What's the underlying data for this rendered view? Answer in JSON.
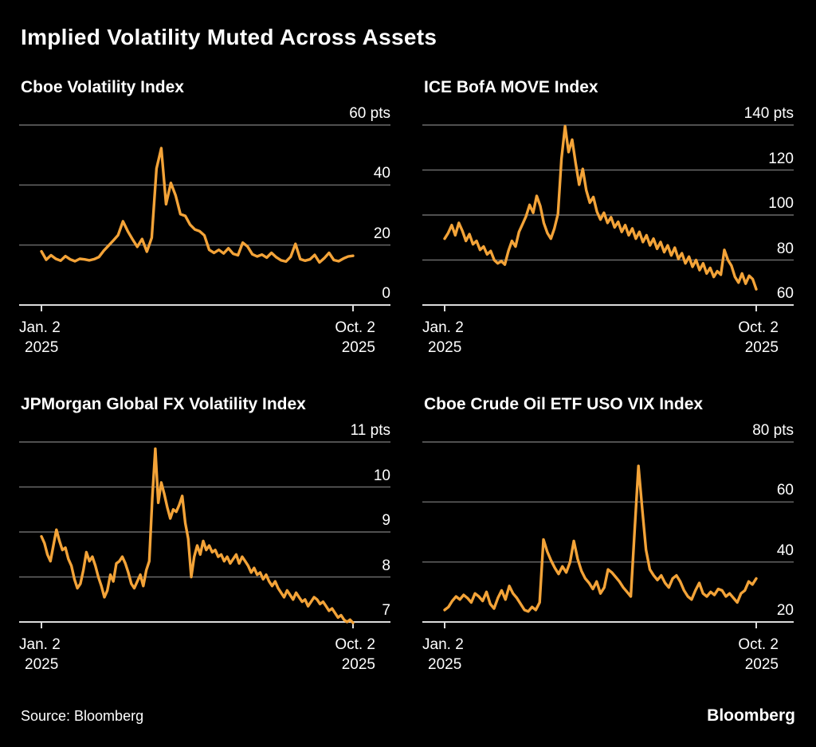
{
  "header": {
    "title": "Implied Volatility Muted Across Assets"
  },
  "footer": {
    "source_label": "Source: Bloomberg",
    "brand": "Bloomberg"
  },
  "colors": {
    "background": "#000000",
    "line": "#F3A338",
    "gridline": "#6b6b6b",
    "axis_line": "#DCDCDC",
    "text": "#FFFFFF"
  },
  "chart_data": [
    {
      "type": "line",
      "title": "Cboe Volatility Index",
      "unit": "pts",
      "ylim": [
        0,
        60
      ],
      "grid": true,
      "legend": "none",
      "yticks": [
        {
          "value": 60,
          "label": "60 pts"
        },
        {
          "value": 40,
          "label": "40"
        },
        {
          "value": 20,
          "label": "20"
        },
        {
          "value": 0,
          "label": "0"
        }
      ],
      "x_start": {
        "line1": "Jan. 2",
        "line2": "2025"
      },
      "x_end": {
        "line1": "Oct. 2",
        "line2": "2025"
      },
      "values": [
        17.9,
        15.1,
        16.6,
        15.4,
        14.8,
        16.3,
        15.2,
        14.6,
        15.4,
        15.2,
        14.9,
        15.3,
        16.0,
        18.1,
        19.8,
        21.5,
        23.3,
        27.9,
        24.6,
        21.9,
        19.4,
        22.0,
        17.8,
        22.4,
        45.5,
        52.3,
        33.6,
        40.7,
        36.5,
        30.3,
        29.7,
        26.8,
        25.2,
        24.6,
        23.2,
        18.4,
        17.4,
        18.4,
        17.2,
        18.9,
        17.1,
        16.6,
        20.8,
        19.5,
        16.9,
        16.2,
        16.8,
        15.8,
        17.4,
        15.9,
        14.9,
        14.5,
        16.1,
        20.4,
        15.3,
        14.8,
        15.2,
        16.7,
        14.2,
        15.6,
        17.4,
        15.0,
        14.6,
        15.5,
        16.2,
        16.4
      ]
    },
    {
      "type": "line",
      "title": "ICE BofA MOVE Index",
      "unit": "pts",
      "ylim": [
        60,
        140
      ],
      "grid": true,
      "legend": "none",
      "yticks": [
        {
          "value": 140,
          "label": "140 pts"
        },
        {
          "value": 120,
          "label": "120"
        },
        {
          "value": 100,
          "label": "100"
        },
        {
          "value": 80,
          "label": "80"
        },
        {
          "value": 60,
          "label": "60"
        }
      ],
      "x_start": {
        "line1": "Jan. 2",
        "line2": "2025"
      },
      "x_end": {
        "line1": "Oct. 2",
        "line2": "2025"
      },
      "values": [
        89.5,
        92.0,
        95.5,
        91.0,
        96.5,
        93.0,
        88.5,
        91.5,
        87.0,
        88.5,
        84.5,
        86.0,
        82.5,
        84.0,
        80.0,
        78.5,
        79.5,
        78.0,
        84.0,
        88.5,
        86.0,
        92.5,
        96.0,
        99.5,
        104.5,
        101.0,
        108.5,
        104.0,
        96.5,
        92.0,
        89.5,
        94.0,
        100.5,
        125.0,
        139.5,
        128.0,
        133.5,
        123.0,
        113.5,
        120.5,
        111.0,
        105.5,
        108.0,
        101.5,
        98.0,
        101.0,
        96.5,
        99.0,
        94.5,
        97.0,
        92.5,
        95.5,
        91.0,
        94.0,
        89.5,
        92.5,
        88.0,
        91.0,
        86.5,
        89.5,
        85.0,
        88.0,
        83.5,
        86.5,
        82.0,
        85.5,
        80.5,
        83.0,
        78.5,
        81.5,
        77.0,
        80.0,
        75.5,
        78.5,
        74.0,
        76.5,
        72.5,
        75.0,
        73.5,
        84.5,
        80.0,
        77.5,
        72.5,
        70.0,
        74.0,
        69.5,
        73.0,
        71.5,
        67.0
      ]
    },
    {
      "type": "line",
      "title": "JPMorgan Global FX Volatility Index",
      "unit": "pts",
      "ylim": [
        7,
        11
      ],
      "grid": true,
      "legend": "none",
      "yticks": [
        {
          "value": 11,
          "label": "11 pts"
        },
        {
          "value": 10,
          "label": "10"
        },
        {
          "value": 9,
          "label": "9"
        },
        {
          "value": 8,
          "label": "8"
        },
        {
          "value": 7,
          "label": "7"
        }
      ],
      "x_start": {
        "line1": "Jan. 2",
        "line2": "2025"
      },
      "x_end": {
        "line1": "Oct. 2",
        "line2": "2025"
      },
      "values": [
        8.9,
        8.75,
        8.5,
        8.35,
        8.7,
        9.05,
        8.8,
        8.6,
        8.65,
        8.4,
        8.25,
        7.95,
        7.75,
        7.85,
        8.15,
        8.55,
        8.35,
        8.45,
        8.25,
        8.0,
        7.8,
        7.55,
        7.7,
        8.05,
        7.9,
        8.3,
        8.35,
        8.45,
        8.3,
        8.1,
        7.85,
        7.75,
        7.9,
        8.05,
        7.8,
        8.15,
        8.35,
        9.75,
        10.85,
        9.65,
        10.1,
        9.85,
        9.55,
        9.3,
        9.5,
        9.45,
        9.6,
        9.8,
        9.2,
        8.85,
        8.0,
        8.45,
        8.7,
        8.5,
        8.8,
        8.6,
        8.7,
        8.55,
        8.6,
        8.45,
        8.5,
        8.35,
        8.45,
        8.3,
        8.4,
        8.5,
        8.3,
        8.45,
        8.35,
        8.25,
        8.1,
        8.2,
        8.05,
        8.1,
        7.95,
        8.05,
        7.9,
        7.8,
        7.9,
        7.75,
        7.65,
        7.55,
        7.7,
        7.6,
        7.5,
        7.65,
        7.55,
        7.45,
        7.5,
        7.35,
        7.45,
        7.55,
        7.5,
        7.4,
        7.45,
        7.35,
        7.25,
        7.3,
        7.2,
        7.1,
        7.15,
        7.05,
        7.0,
        7.05,
        6.98
      ]
    },
    {
      "type": "line",
      "title": "Cboe Crude Oil ETF USO VIX Index",
      "unit": "pts",
      "ylim": [
        20,
        80
      ],
      "grid": true,
      "legend": "none",
      "yticks": [
        {
          "value": 80,
          "label": "80 pts"
        },
        {
          "value": 60,
          "label": "60"
        },
        {
          "value": 40,
          "label": "40"
        },
        {
          "value": 20,
          "label": "20"
        }
      ],
      "x_start": {
        "line1": "Jan. 2",
        "line2": "2025"
      },
      "x_end": {
        "line1": "Oct. 2",
        "line2": "2025"
      },
      "values": [
        24.0,
        25.0,
        27.0,
        28.5,
        27.5,
        29.0,
        28.0,
        26.5,
        29.5,
        28.5,
        27.0,
        30.0,
        26.0,
        24.5,
        28.0,
        30.5,
        27.5,
        32.0,
        29.5,
        28.0,
        26.0,
        24.0,
        23.5,
        25.0,
        24.0,
        26.5,
        47.5,
        43.5,
        40.5,
        38.0,
        36.0,
        38.5,
        36.5,
        40.0,
        47.0,
        41.0,
        37.0,
        34.5,
        33.0,
        31.0,
        33.5,
        29.5,
        31.5,
        37.5,
        36.5,
        35.0,
        33.5,
        31.5,
        30.0,
        28.5,
        50.5,
        72.0,
        57.5,
        44.0,
        37.5,
        35.5,
        34.0,
        35.5,
        33.0,
        31.5,
        34.5,
        35.5,
        33.5,
        30.5,
        28.5,
        27.5,
        30.5,
        33.0,
        29.5,
        28.5,
        30.0,
        29.0,
        31.0,
        30.5,
        28.5,
        29.5,
        28.0,
        26.5,
        29.5,
        30.5,
        33.5,
        32.5,
        34.5
      ]
    }
  ]
}
